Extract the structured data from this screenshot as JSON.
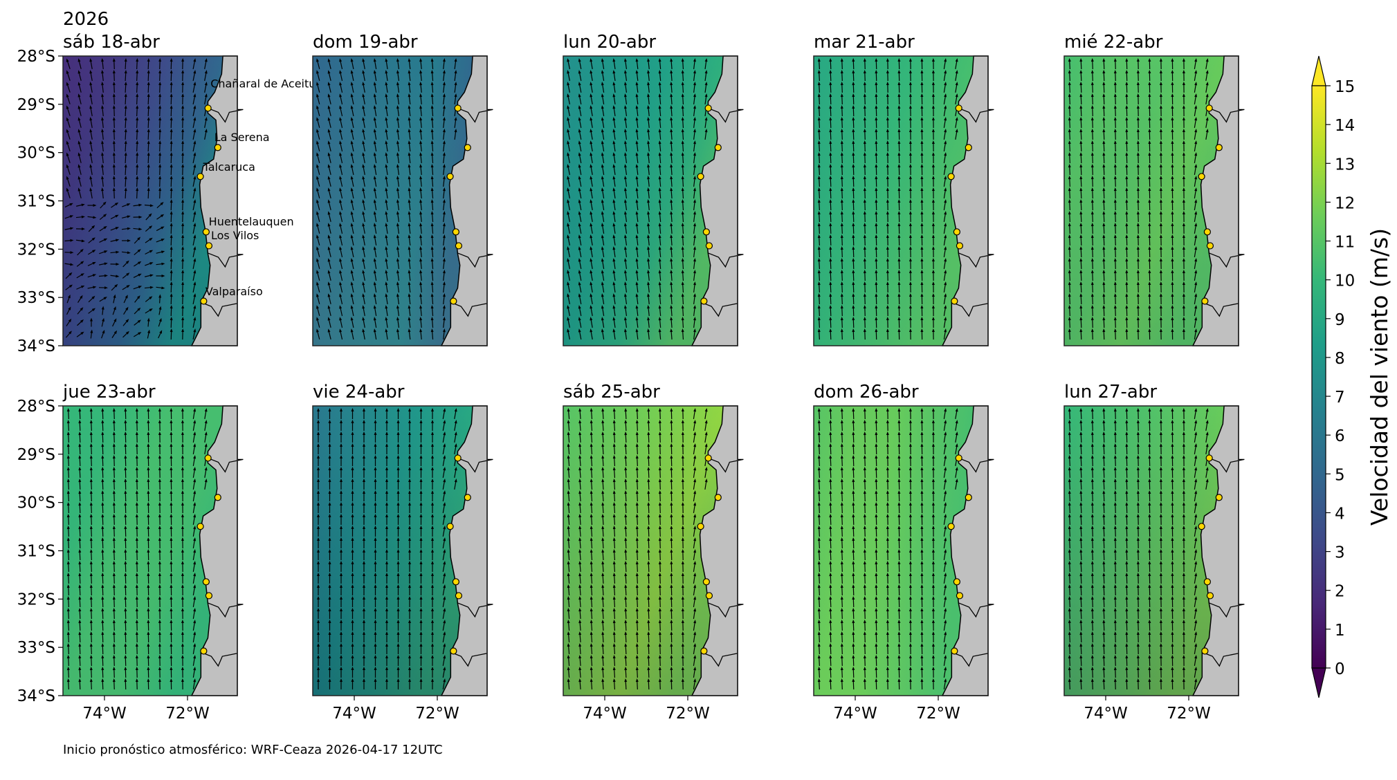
{
  "chart_data": {
    "type": "heatmap",
    "title_year": "2026",
    "colorbar": {
      "label": "Velocidad del viento (m/s)",
      "min": 0,
      "max": 15,
      "ticks": [
        0,
        1,
        2,
        3,
        4,
        5,
        6,
        7,
        8,
        9,
        10,
        11,
        12,
        13,
        14,
        15
      ],
      "colormap": "viridis",
      "extend": "both"
    },
    "lat_ticks": [
      "28°S",
      "29°S",
      "30°S",
      "31°S",
      "32°S",
      "33°S",
      "34°S"
    ],
    "lon_ticks": [
      "74°W",
      "72°W"
    ],
    "lat_range": [
      -34,
      -28
    ],
    "lon_range": [
      -75,
      -70.8
    ],
    "cities": [
      "Chañaral de Aceituno",
      "La Serena",
      "Talcaruca",
      "Huentelauquen",
      "Los Vilos",
      "Valparaíso"
    ],
    "panels": [
      {
        "title": "sáb 18-abr",
        "speed_west_to_coast": [
          2,
          2.5,
          3.5,
          5,
          8
        ],
        "speed_south_factor": -0.8,
        "arrow_dir_deg": 5,
        "turbulent": true
      },
      {
        "title": "dom 19-abr",
        "speed_west_to_coast": [
          5,
          5.5,
          6,
          6.3,
          5
        ],
        "speed_south_factor": 0.3,
        "arrow_dir_deg": -15,
        "turbulent": false
      },
      {
        "title": "lun 20-abr",
        "speed_west_to_coast": [
          7.5,
          8,
          8.5,
          9.5,
          11
        ],
        "speed_south_factor": -0.5,
        "arrow_dir_deg": -12,
        "turbulent": false
      },
      {
        "title": "mar 21-abr",
        "speed_west_to_coast": [
          9,
          9.5,
          10,
          10.5,
          11
        ],
        "speed_south_factor": -0.2,
        "arrow_dir_deg": -3,
        "turbulent": false
      },
      {
        "title": "mié 22-abr",
        "speed_west_to_coast": [
          10.5,
          11,
          11,
          11.5,
          11
        ],
        "speed_south_factor": -0.5,
        "arrow_dir_deg": -3,
        "turbulent": false
      },
      {
        "title": "jue 23-abr",
        "speed_west_to_coast": [
          10,
          10,
          10.5,
          10.5,
          10
        ],
        "speed_south_factor": -0.2,
        "arrow_dir_deg": -3,
        "turbulent": false
      },
      {
        "title": "vie 24-abr",
        "speed_west_to_coast": [
          6,
          7,
          8,
          9,
          10
        ],
        "speed_south_factor": -1.5,
        "arrow_dir_deg": 0,
        "turbulent": false
      },
      {
        "title": "sáb 25-abr",
        "speed_west_to_coast": [
          11,
          11.5,
          12,
          12.5,
          12
        ],
        "speed_south_factor": -1.0,
        "arrow_dir_deg": -5,
        "turbulent": false
      },
      {
        "title": "dom 26-abr",
        "speed_west_to_coast": [
          11,
          11.5,
          11.5,
          11,
          10.5
        ],
        "speed_south_factor": 0.3,
        "arrow_dir_deg": -3,
        "turbulent": false
      },
      {
        "title": "lun 27-abr",
        "speed_west_to_coast": [
          10,
          10.5,
          11,
          11.5,
          12
        ],
        "speed_south_factor": -1.2,
        "arrow_dir_deg": -3,
        "turbulent": false
      }
    ]
  },
  "footer": "Inicio pronóstico atmosférico: WRF-Ceaza 2026-04-17 12UTC",
  "colors": {
    "land": "#c0c0c0",
    "city_dot": "#ffd700"
  }
}
